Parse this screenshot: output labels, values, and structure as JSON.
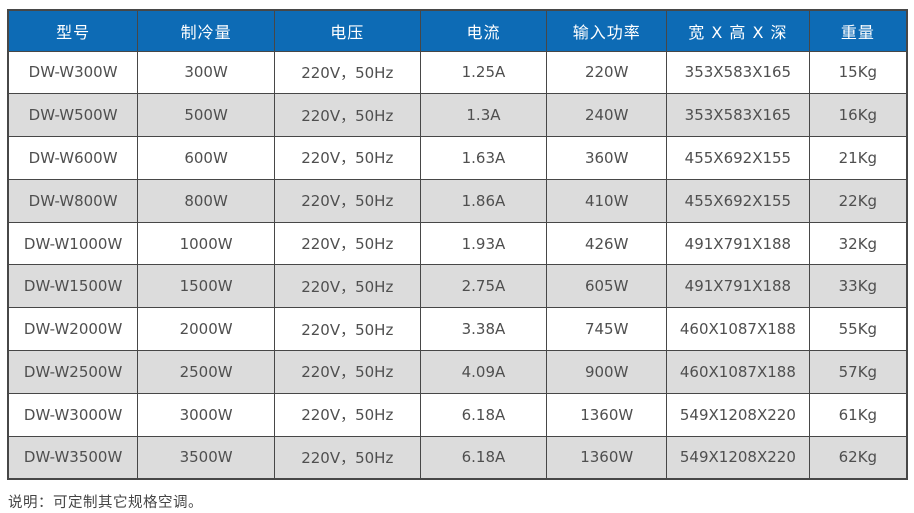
{
  "chart_data": {
    "type": "table",
    "columns": [
      "型号",
      "制冷量",
      "电压",
      "电流",
      "输入功率",
      "宽 X 高 X 深",
      "重量"
    ],
    "rows": [
      [
        "DW-W300W",
        "300W",
        "220V，50Hz",
        "1.25A",
        "220W",
        "353X583X165",
        "15Kg"
      ],
      [
        "DW-W500W",
        "500W",
        "220V，50Hz",
        "1.3A",
        "240W",
        "353X583X165",
        "16Kg"
      ],
      [
        "DW-W600W",
        "600W",
        "220V，50Hz",
        "1.63A",
        "360W",
        "455X692X155",
        "21Kg"
      ],
      [
        "DW-W800W",
        "800W",
        "220V，50Hz",
        "1.86A",
        "410W",
        "455X692X155",
        "22Kg"
      ],
      [
        "DW-W1000W",
        "1000W",
        "220V，50Hz",
        "1.93A",
        "426W",
        "491X791X188",
        "32Kg"
      ],
      [
        "DW-W1500W",
        "1500W",
        "220V，50Hz",
        "2.75A",
        "605W",
        "491X791X188",
        "33Kg"
      ],
      [
        "DW-W2000W",
        "2000W",
        "220V，50Hz",
        "3.38A",
        "745W",
        "460X1087X188",
        "55Kg"
      ],
      [
        "DW-W2500W",
        "2500W",
        "220V，50Hz",
        "4.09A",
        "900W",
        "460X1087X188",
        "57Kg"
      ],
      [
        "DW-W3000W",
        "3000W",
        "220V，50Hz",
        "6.18A",
        "1360W",
        "549X1208X220",
        "61Kg"
      ],
      [
        "DW-W3500W",
        "3500W",
        "220V，50Hz",
        "6.18A",
        "1360W",
        "549X1208X220",
        "62Kg"
      ]
    ],
    "layout_hints": {
      "striped_rows": true,
      "first_data_row": "white",
      "header_position": "top"
    }
  },
  "note": "说明：可定制其它规格空调。",
  "colors": {
    "header_bg": "#0d6bb5",
    "header_text": "#ffffff",
    "border": "#474747",
    "cell_text": "#4f4f4f",
    "alt_row_bg": "#dcdcdc"
  }
}
